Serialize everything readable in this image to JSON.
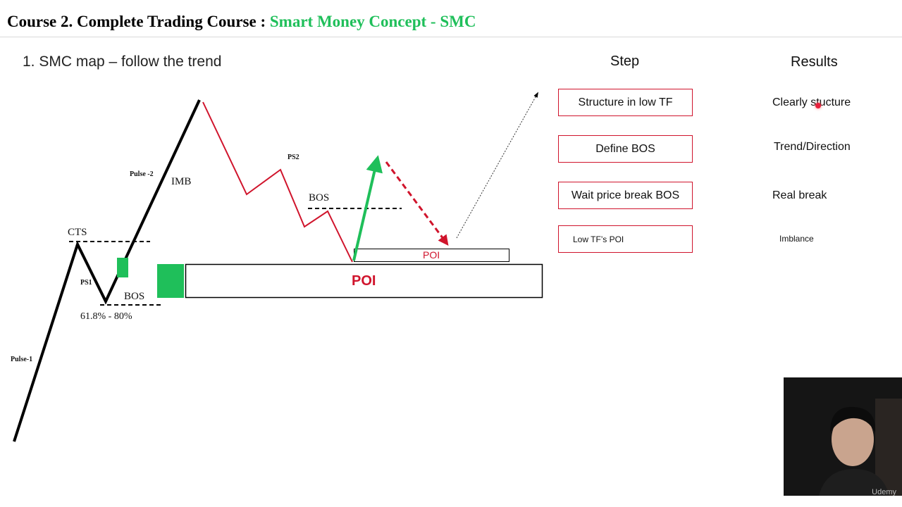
{
  "header": {
    "title_prefix": "Course 2. Complete Trading Course : ",
    "title_highlight": "Smart Money Concept - SMC",
    "accent_color": "#1fbf5a"
  },
  "slide": {
    "subtitle": "1.   SMC map – follow the trend"
  },
  "diagram": {
    "labels": {
      "pulse1": "Pulse-1",
      "pulse2": "Pulse -2",
      "imb": "IMB",
      "cts": "CTS",
      "ps1": "PS1",
      "ps2": "PS2",
      "bos1": "BOS",
      "bos2": "BOS",
      "fib": "61.8% - 80%",
      "poi_main": "POI",
      "poi_small": "POI"
    },
    "colors": {
      "bull": "#000000",
      "bear": "#d0142c",
      "green": "#1fbf5a"
    }
  },
  "steps": {
    "header": "Step",
    "items": [
      "Structure in low TF",
      "Define BOS",
      "Wait price break BOS",
      "Low TF’s POI"
    ]
  },
  "results": {
    "header": "Results",
    "items": [
      "Clearly stucture",
      "Trend/Direction",
      "Real break",
      "Imblance"
    ]
  },
  "video": {
    "watermark": "Udemy"
  }
}
